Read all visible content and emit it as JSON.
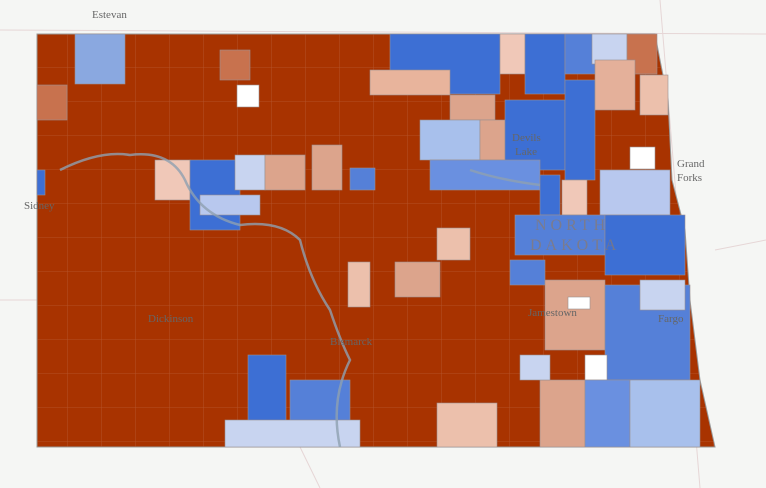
{
  "places": [
    {
      "name": "Estevan"
    },
    {
      "name": "Grand"
    },
    {
      "name": "Forks"
    },
    {
      "name": "Devils"
    },
    {
      "name": "Lake"
    },
    {
      "name": "NORTH"
    },
    {
      "name": "DAKOTA"
    },
    {
      "name": "Jamestown"
    },
    {
      "name": "Fargo"
    },
    {
      "name": "Bismarck"
    },
    {
      "name": "Sidney"
    },
    {
      "name": "Dickinson"
    }
  ]
}
